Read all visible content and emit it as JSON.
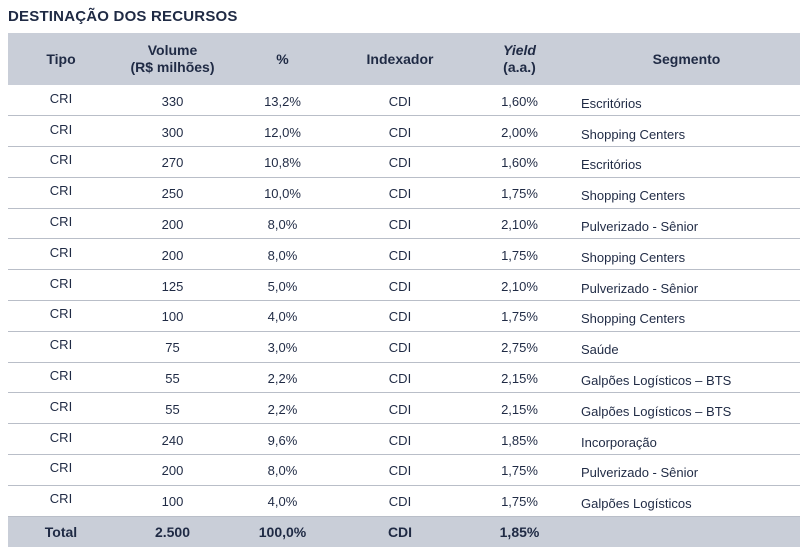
{
  "title": "DESTINAÇÃO DOS RECURSOS",
  "headers": {
    "tipo": "Tipo",
    "volume_line1": "Volume",
    "volume_line2": "(R$ milhões)",
    "pct": "%",
    "indexador": "Indexador",
    "yield_line1": "Yield",
    "yield_line2": "(a.a.)",
    "segmento": "Segmento"
  },
  "rows": [
    {
      "tipo": "CRI",
      "volume": "330",
      "pct": "13,2%",
      "indexador": "CDI",
      "yield": "1,60%",
      "segmento": "Escritórios"
    },
    {
      "tipo": "CRI",
      "volume": "300",
      "pct": "12,0%",
      "indexador": "CDI",
      "yield": "2,00%",
      "segmento": "Shopping Centers"
    },
    {
      "tipo": "CRI",
      "volume": "270",
      "pct": "10,8%",
      "indexador": "CDI",
      "yield": "1,60%",
      "segmento": "Escritórios"
    },
    {
      "tipo": "CRI",
      "volume": "250",
      "pct": "10,0%",
      "indexador": "CDI",
      "yield": "1,75%",
      "segmento": "Shopping Centers"
    },
    {
      "tipo": "CRI",
      "volume": "200",
      "pct": "8,0%",
      "indexador": "CDI",
      "yield": "2,10%",
      "segmento": "Pulverizado - Sênior"
    },
    {
      "tipo": "CRI",
      "volume": "200",
      "pct": "8,0%",
      "indexador": "CDI",
      "yield": "1,75%",
      "segmento": "Shopping Centers"
    },
    {
      "tipo": "CRI",
      "volume": "125",
      "pct": "5,0%",
      "indexador": "CDI",
      "yield": "2,10%",
      "segmento": "Pulverizado - Sênior"
    },
    {
      "tipo": "CRI",
      "volume": "100",
      "pct": "4,0%",
      "indexador": "CDI",
      "yield": "1,75%",
      "segmento": "Shopping Centers"
    },
    {
      "tipo": "CRI",
      "volume": "75",
      "pct": "3,0%",
      "indexador": "CDI",
      "yield": "2,75%",
      "segmento": "Saúde"
    },
    {
      "tipo": "CRI",
      "volume": "55",
      "pct": "2,2%",
      "indexador": "CDI",
      "yield": "2,15%",
      "segmento": "Galpões Logísticos – BTS"
    },
    {
      "tipo": "CRI",
      "volume": "55",
      "pct": "2,2%",
      "indexador": "CDI",
      "yield": "2,15%",
      "segmento": "Galpões Logísticos – BTS"
    },
    {
      "tipo": "CRI",
      "volume": "240",
      "pct": "9,6%",
      "indexador": "CDI",
      "yield": "1,85%",
      "segmento": "Incorporação"
    },
    {
      "tipo": "CRI",
      "volume": "200",
      "pct": "8,0%",
      "indexador": "CDI",
      "yield": "1,75%",
      "segmento": "Pulverizado - Sênior"
    },
    {
      "tipo": "CRI",
      "volume": "100",
      "pct": "4,0%",
      "indexador": "CDI",
      "yield": "1,75%",
      "segmento": "Galpões Logísticos"
    }
  ],
  "total": {
    "label": "Total",
    "volume": "2.500",
    "pct": "100,0%",
    "indexador": "CDI",
    "yield": "1,85%",
    "segmento": ""
  },
  "colors": {
    "header_bg": "#c9ced8",
    "text": "#1f2a44",
    "row_divider": "#b9bec8"
  }
}
